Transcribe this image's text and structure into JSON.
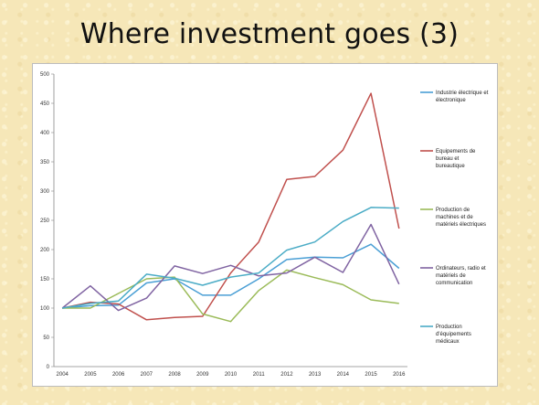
{
  "slide": {
    "title": "Where investment goes (3)"
  },
  "chart_data": {
    "type": "line",
    "title": "",
    "xlabel": "",
    "ylabel": "",
    "x": [
      "2004",
      "2005",
      "2006",
      "2007",
      "2008",
      "2009",
      "2010",
      "2011",
      "2012",
      "2013",
      "2014",
      "2015",
      "2016"
    ],
    "ylim": [
      0,
      500
    ],
    "yticks": [
      0,
      50,
      100,
      150,
      200,
      250,
      300,
      350,
      400,
      450,
      500
    ],
    "grid": false,
    "legend_position": "right",
    "series": [
      {
        "name": "Industrie électrique et électronique",
        "color": "#4a9fd5",
        "values": [
          100,
          104,
          105,
          143,
          150,
          122,
          122,
          150,
          183,
          187,
          186,
          209,
          168
        ]
      },
      {
        "name": "Equipements de bureau et bureautique",
        "color": "#c0504d",
        "values": [
          100,
          110,
          107,
          80,
          84,
          86,
          160,
          213,
          320,
          325,
          370,
          467,
          236
        ]
      },
      {
        "name": "Production de machines et de matériels électriques",
        "color": "#9bbb59",
        "values": [
          100,
          100,
          125,
          150,
          153,
          90,
          77,
          130,
          165,
          152,
          140,
          114,
          108
        ]
      },
      {
        "name": "Ordinateurs, radio et matériels de communication",
        "color": "#8064a2",
        "values": [
          100,
          138,
          96,
          117,
          172,
          159,
          173,
          155,
          160,
          187,
          161,
          243,
          141
        ]
      },
      {
        "name": "Production d'équipements médicaux",
        "color": "#4bacc6",
        "values": [
          100,
          108,
          112,
          158,
          151,
          139,
          153,
          160,
          199,
          213,
          248,
          272,
          271
        ]
      }
    ]
  }
}
